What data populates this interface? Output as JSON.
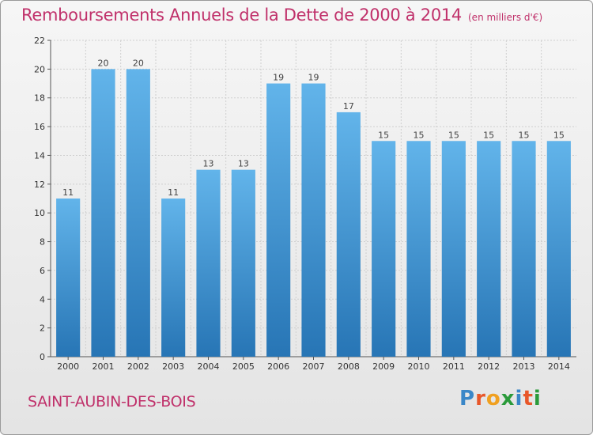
{
  "title": "Remboursements Annuels de la Dette de 2000 à 2014",
  "subtitle": "(en milliers d'€)",
  "commune": "SAINT-AUBIN-DES-BOIS",
  "brand": {
    "text": "Proxiti",
    "letter_colors": [
      "#3a87c8",
      "#e8572a",
      "#f0a020",
      "#2a9a3a",
      "#3a87c8",
      "#e8572a",
      "#2a9a3a"
    ]
  },
  "colors": {
    "title": "#c0306a",
    "bar_top": "#62b4ea",
    "bar_bottom": "#2775b5",
    "grid": "#cfcfcf"
  },
  "chart_data": {
    "type": "bar",
    "title": "Remboursements Annuels de la Dette de 2000 à 2014",
    "subtitle": "(en milliers d'€)",
    "categories": [
      "2000",
      "2001",
      "2002",
      "2003",
      "2004",
      "2005",
      "2006",
      "2007",
      "2008",
      "2009",
      "2010",
      "2011",
      "2012",
      "2013",
      "2014"
    ],
    "values": [
      11,
      20,
      20,
      11,
      13,
      13,
      19,
      19,
      17,
      15,
      15,
      15,
      15,
      15,
      15
    ],
    "ylim": [
      0,
      22
    ],
    "yticks": [
      0,
      2,
      4,
      6,
      8,
      10,
      12,
      14,
      16,
      18,
      20,
      22
    ],
    "grid": true,
    "data_labels": true
  }
}
